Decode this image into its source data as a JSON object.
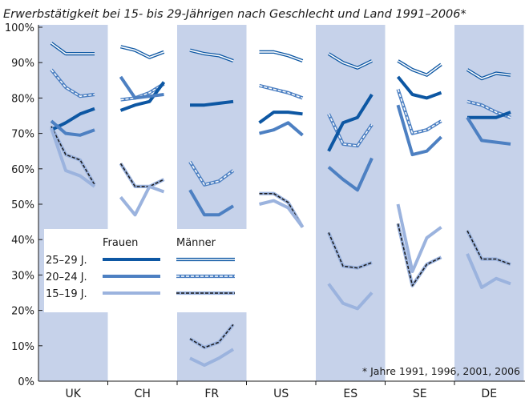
{
  "chart_data": {
    "type": "line",
    "title": "Erwerbstätigkeit bei 15- bis 29-Jährigen nach Geschlecht und Land 1991–2006*",
    "footnote": "* Jahre 1991, 1996, 2001, 2006",
    "ylim": [
      0,
      100
    ],
    "y_ticks": [
      "0%",
      "10%",
      "20%",
      "30%",
      "40%",
      "50%",
      "60%",
      "70%",
      "80%",
      "90%",
      "100%"
    ],
    "grid": false,
    "countries": [
      "UK",
      "CH",
      "FR",
      "US",
      "ES",
      "SE",
      "DE"
    ],
    "shaded_countries": [
      "UK",
      "FR",
      "ES",
      "DE"
    ],
    "years": [
      1991,
      1996,
      2001,
      2006
    ],
    "legend": {
      "position": "left-middle",
      "header_women": "Frauen",
      "header_men": "Männer",
      "age_groups": [
        "25–29 J.",
        "20–24 J.",
        "15–19 J."
      ]
    },
    "colors": {
      "dark": "#0d57a3",
      "medium": "#4d80c2",
      "light": "#9bb3de",
      "shade": "#c6d2ea",
      "text": "#1a1a1a"
    },
    "series": [
      {
        "sex": "Frauen",
        "age": "25–29 J.",
        "values": {
          "UK": [
            71,
            73,
            75.5,
            77
          ],
          "CH": [
            76.5,
            78,
            79,
            84.5
          ],
          "FR": [
            78,
            78,
            78.5,
            79
          ],
          "US": [
            73,
            76,
            76,
            75.5
          ],
          "ES": [
            65,
            73,
            74.5,
            81
          ],
          "SE": [
            86,
            81,
            80,
            81.5
          ],
          "DE": [
            74.5,
            74.5,
            74.5,
            76
          ]
        }
      },
      {
        "sex": "Frauen",
        "age": "20–24 J.",
        "values": {
          "UK": [
            73.5,
            70,
            69.5,
            71
          ],
          "CH": [
            86,
            80,
            80.5,
            81
          ],
          "FR": [
            54,
            47,
            47,
            49.5
          ],
          "US": [
            70,
            71,
            73,
            69.5
          ],
          "ES": [
            60.5,
            57,
            54,
            63
          ],
          "SE": [
            78,
            64,
            65,
            69
          ],
          "DE": [
            74.5,
            68,
            67.5,
            67
          ]
        }
      },
      {
        "sex": "Frauen",
        "age": "15–19 J.",
        "values": {
          "UK": [
            71.5,
            59.5,
            58,
            55
          ],
          "CH": [
            52,
            47,
            55,
            53.5
          ],
          "FR": [
            6.5,
            4.5,
            6.5,
            9
          ],
          "US": [
            50,
            51,
            49,
            43.5
          ],
          "ES": [
            27.5,
            22,
            20.5,
            25
          ],
          "SE": [
            50,
            31,
            40.5,
            43.5
          ],
          "DE": [
            36,
            26.5,
            29,
            27.5
          ]
        }
      },
      {
        "sex": "Männer",
        "age": "25–29 J.",
        "values": {
          "UK": [
            95.5,
            92.5,
            92.5,
            92.5
          ],
          "CH": [
            94.5,
            93.5,
            91.5,
            93
          ],
          "FR": [
            93.5,
            92.5,
            92,
            90.5
          ],
          "US": [
            93,
            93,
            92,
            90.5
          ],
          "ES": [
            92.5,
            90,
            88.5,
            90.5
          ],
          "SE": [
            90.5,
            88,
            86.5,
            89.5
          ],
          "DE": [
            88,
            85.5,
            87,
            86.5
          ]
        }
      },
      {
        "sex": "Männer",
        "age": "20–24 J.",
        "values": {
          "UK": [
            88,
            83,
            80.5,
            81
          ],
          "CH": [
            79.5,
            80,
            81.5,
            84
          ],
          "FR": [
            62,
            55.5,
            56.5,
            59.5
          ],
          "US": [
            83.5,
            82.5,
            81.5,
            80
          ],
          "ES": [
            75.5,
            67,
            66.5,
            72.5
          ],
          "SE": [
            82.5,
            70,
            71,
            73.5
          ],
          "DE": [
            79,
            78,
            76,
            74.5
          ]
        }
      },
      {
        "sex": "Männer",
        "age": "15–19 J.",
        "values": {
          "UK": [
            72,
            64,
            62.5,
            55.5
          ],
          "CH": [
            61.5,
            55,
            55,
            57
          ],
          "FR": [
            12,
            9.5,
            11,
            16
          ],
          "US": [
            53,
            53,
            50.5,
            43.5
          ],
          "ES": [
            42,
            32.5,
            32,
            33.5
          ],
          "SE": [
            44.5,
            27,
            33,
            35
          ],
          "DE": [
            42.5,
            34.5,
            34.5,
            33
          ]
        }
      }
    ]
  }
}
